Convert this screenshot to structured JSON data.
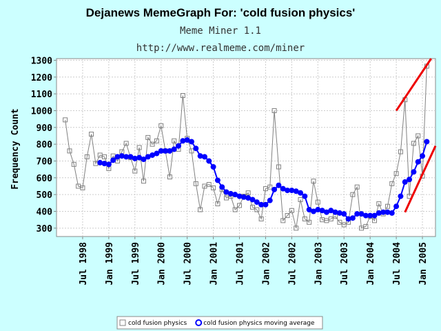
{
  "chart_data": {
    "type": "line",
    "title": "Dejanews MemeGraph For: 'cold fusion physics'",
    "subtitle": "Meme Miner 1.1",
    "url": "http://www.realmeme.com/miner",
    "y_label": "Frequency Count",
    "x": [
      "1998-03",
      "1998-04",
      "1998-05",
      "1998-06",
      "1998-07",
      "1998-08",
      "1998-09",
      "1998-10",
      "1998-11",
      "1998-12",
      "1999-01",
      "1999-02",
      "1999-03",
      "1999-04",
      "1999-05",
      "1999-06",
      "1999-07",
      "1999-08",
      "1999-09",
      "1999-10",
      "1999-11",
      "1999-12",
      "2000-01",
      "2000-02",
      "2000-03",
      "2000-04",
      "2000-05",
      "2000-06",
      "2000-07",
      "2000-08",
      "2000-09",
      "2000-10",
      "2000-11",
      "2000-12",
      "2001-01",
      "2001-02",
      "2001-03",
      "2001-04",
      "2001-05",
      "2001-06",
      "2001-07",
      "2001-08",
      "2001-09",
      "2001-10",
      "2001-11",
      "2001-12",
      "2002-01",
      "2002-02",
      "2002-03",
      "2002-04",
      "2002-05",
      "2002-06",
      "2002-07",
      "2002-08",
      "2002-09",
      "2002-10",
      "2002-11",
      "2002-12",
      "2003-01",
      "2003-02",
      "2003-03",
      "2003-04",
      "2003-05",
      "2003-06",
      "2003-07",
      "2003-08",
      "2003-09",
      "2003-10",
      "2003-11",
      "2003-12",
      "2004-01",
      "2004-02",
      "2004-03",
      "2004-04",
      "2004-05",
      "2004-06",
      "2004-07",
      "2004-08",
      "2004-09",
      "2004-10",
      "2004-11",
      "2004-12",
      "2005-01",
      "2005-02"
    ],
    "series": [
      {
        "name": "cold fusion physics",
        "color": "#808080",
        "marker": "square",
        "values": [
          945,
          760,
          680,
          550,
          540,
          725,
          860,
          685,
          735,
          725,
          655,
          730,
          700,
          755,
          805,
          720,
          640,
          780,
          580,
          840,
          800,
          820,
          910,
          760,
          605,
          820,
          770,
          1090,
          835,
          760,
          565,
          410,
          550,
          560,
          540,
          445,
          530,
          480,
          490,
          410,
          435,
          490,
          510,
          425,
          410,
          355,
          535,
          545,
          1000,
          665,
          345,
          375,
          405,
          300,
          470,
          355,
          335,
          580,
          455,
          350,
          345,
          355,
          370,
          335,
          320,
          335,
          500,
          545,
          300,
          310,
          370,
          345,
          445,
          385,
          430,
          565,
          625,
          755,
          1065,
          490,
          805,
          850,
          610,
          1265
        ]
      },
      {
        "name": "cold fusion physics moving average",
        "color": "#0000ff",
        "marker": "circle",
        "values": [
          null,
          null,
          null,
          null,
          null,
          null,
          null,
          null,
          690,
          685,
          680,
          705,
          725,
          730,
          725,
          725,
          715,
          720,
          710,
          725,
          735,
          745,
          760,
          760,
          760,
          770,
          790,
          820,
          825,
          815,
          775,
          730,
          725,
          700,
          665,
          585,
          545,
          515,
          505,
          500,
          490,
          485,
          480,
          470,
          455,
          440,
          440,
          465,
          530,
          555,
          535,
          525,
          525,
          520,
          510,
          490,
          410,
          400,
          410,
          405,
          395,
          405,
          395,
          390,
          385,
          355,
          360,
          385,
          385,
          375,
          375,
          375,
          390,
          395,
          395,
          390,
          430,
          490,
          575,
          590,
          635,
          695,
          730,
          815
        ]
      }
    ],
    "trend_lines": [
      {
        "color": "#ee0000",
        "x": [
          "2004-07",
          "2005-03"
        ],
        "y": [
          1000,
          1310
        ]
      },
      {
        "color": "#ee0000",
        "x": [
          "2004-09",
          "2005-04"
        ],
        "y": [
          395,
          790
        ]
      }
    ],
    "xlim": [
      "1998-01",
      "2005-04"
    ],
    "xticks": [
      {
        "value": "1998-07",
        "label": "Jul 1998"
      },
      {
        "value": "1999-01",
        "label": "Jan 1999"
      },
      {
        "value": "1999-07",
        "label": "Jul 1999"
      },
      {
        "value": "2000-01",
        "label": "Jan 2000"
      },
      {
        "value": "2000-07",
        "label": "Jul 2000"
      },
      {
        "value": "2001-01",
        "label": "Jan 2001"
      },
      {
        "value": "2001-07",
        "label": "Jul 2001"
      },
      {
        "value": "2002-01",
        "label": "Jan 2002"
      },
      {
        "value": "2002-07",
        "label": "Jul 2002"
      },
      {
        "value": "2003-01",
        "label": "Jan 2003"
      },
      {
        "value": "2003-07",
        "label": "Jul 2003"
      },
      {
        "value": "2004-01",
        "label": "Jan 2004"
      },
      {
        "value": "2004-07",
        "label": "Jul 2004"
      },
      {
        "value": "2005-01",
        "label": "Jan 2005"
      }
    ],
    "ylim": [
      250,
      1310
    ],
    "yticks": [
      300,
      400,
      500,
      600,
      700,
      800,
      900,
      1000,
      1100,
      1200,
      1300
    ],
    "grid": true
  }
}
